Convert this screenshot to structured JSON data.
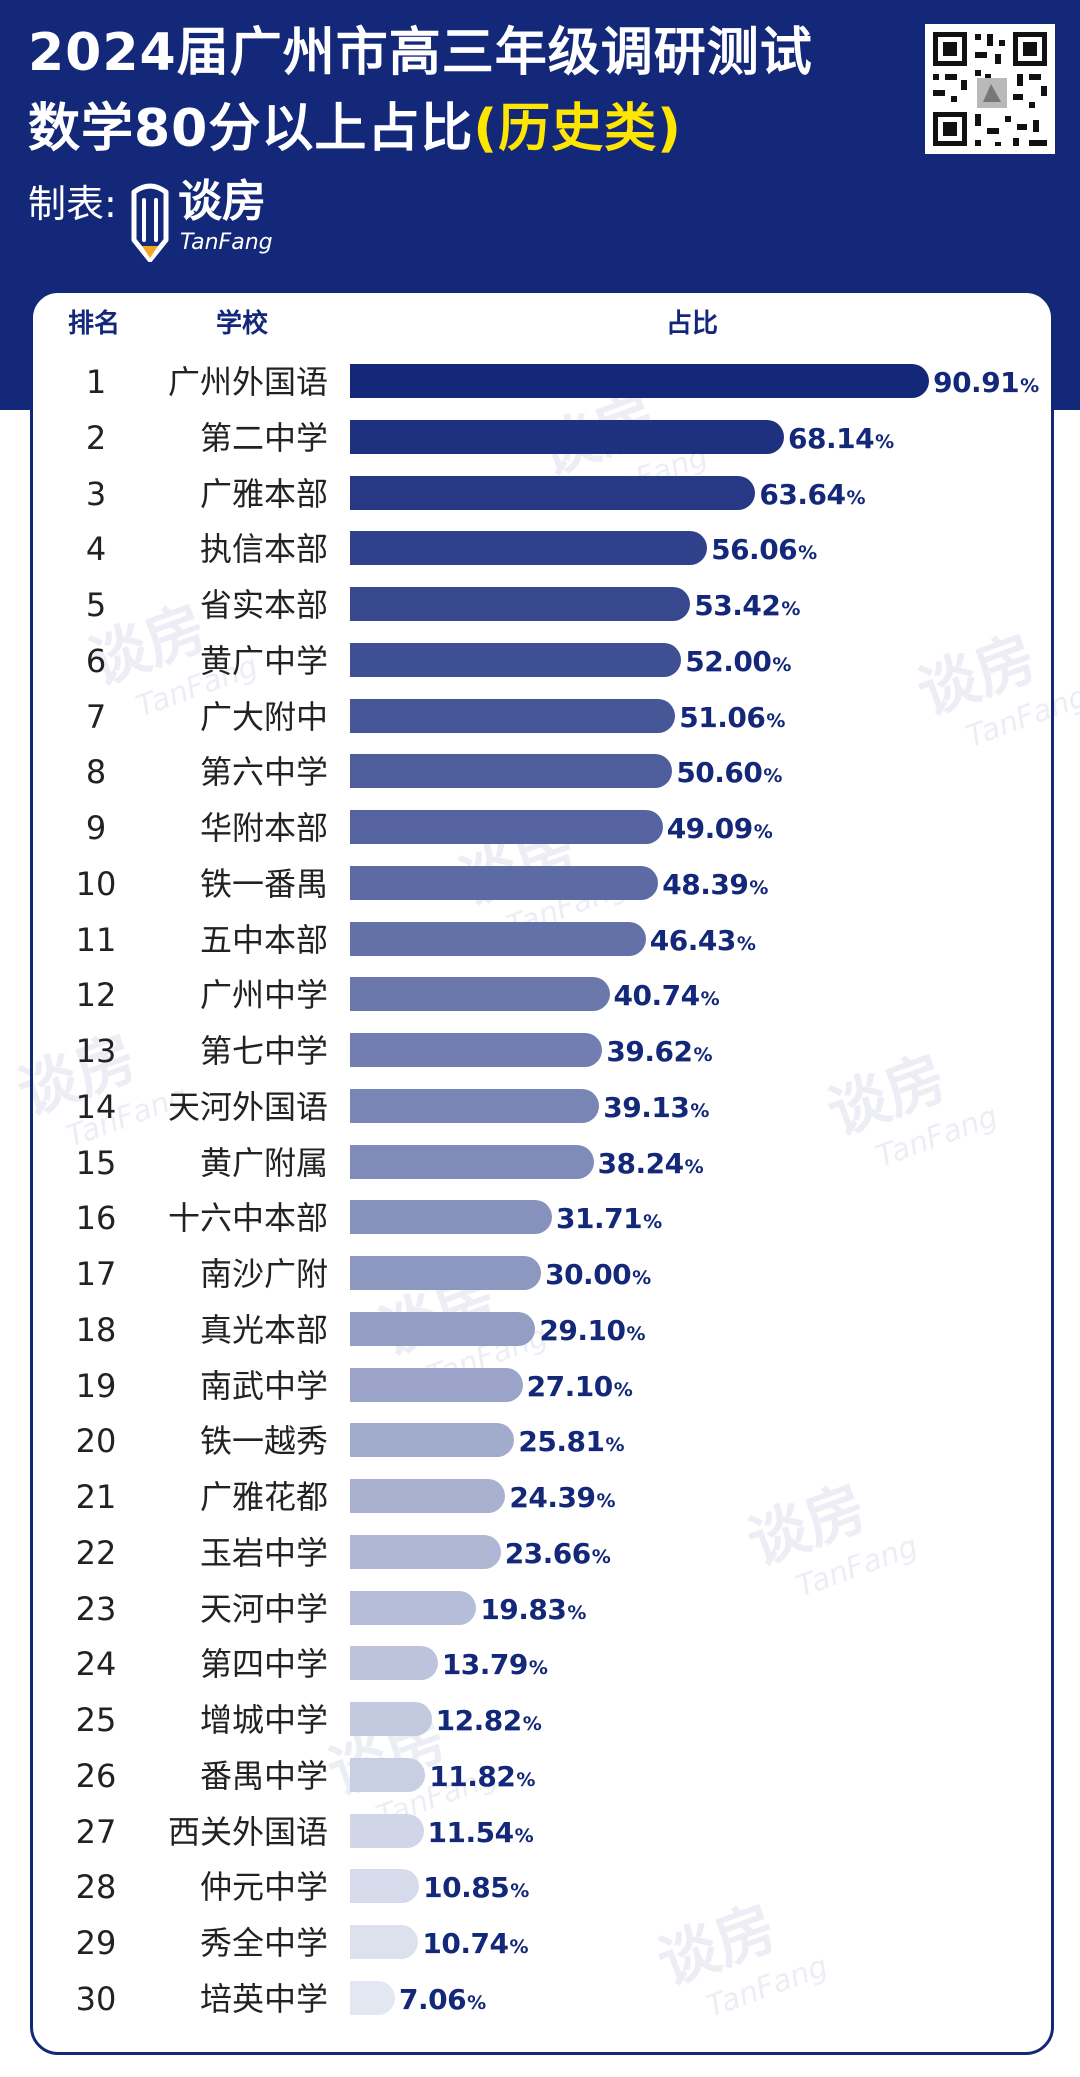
{
  "header": {
    "title_line1": "2024届广州市高三年级调研测试",
    "title_line2_main": "数学80分以上占比",
    "title_line2_highlight": "(历史类)",
    "maker_label": "制表:",
    "logo_text": "谈房",
    "logo_sub": "TanFang"
  },
  "columns": {
    "rank": "排名",
    "school": "学校",
    "share": "占比"
  },
  "watermark": {
    "text": "谈房",
    "sub": "TanFang"
  },
  "colors": {
    "header_bg": "#14287a",
    "highlight": "#ffe600",
    "bar_dark": "#14287a",
    "bar_light": "#e3e7f2"
  },
  "chart_data": {
    "type": "bar",
    "orientation": "horizontal",
    "unit": "%",
    "xlim": [
      0,
      100
    ],
    "ranks": [
      "1",
      "2",
      "3",
      "4",
      "5",
      "6",
      "7",
      "8",
      "9",
      "10",
      "11",
      "12",
      "13",
      "14",
      "15",
      "16",
      "17",
      "18",
      "19",
      "20",
      "21",
      "22",
      "23",
      "24",
      "25",
      "26",
      "27",
      "28",
      "29",
      "30"
    ],
    "categories": [
      "广州外国语",
      "第二中学",
      "广雅本部",
      "执信本部",
      "省实本部",
      "黄广中学",
      "广大附中",
      "第六中学",
      "华附本部",
      "铁一番禺",
      "五中本部",
      "广州中学",
      "第七中学",
      "天河外国语",
      "黄广附属",
      "十六中本部",
      "南沙广附",
      "真光本部",
      "南武中学",
      "铁一越秀",
      "广雅花都",
      "玉岩中学",
      "天河中学",
      "第四中学",
      "增城中学",
      "番禺中学",
      "西关外国语",
      "仲元中学",
      "秀全中学",
      "培英中学"
    ],
    "values": [
      90.91,
      68.14,
      63.64,
      56.06,
      53.42,
      52.0,
      51.06,
      50.6,
      49.09,
      48.39,
      46.43,
      40.74,
      39.62,
      39.13,
      38.24,
      31.71,
      30.0,
      29.1,
      27.1,
      25.81,
      24.39,
      23.66,
      19.83,
      13.79,
      12.82,
      11.82,
      11.54,
      10.85,
      10.74,
      7.06
    ],
    "labels": [
      "90.91",
      "68.14",
      "63.64",
      "56.06",
      "53.42",
      "52.00",
      "51.06",
      "50.60",
      "49.09",
      "48.39",
      "46.43",
      "40.74",
      "39.62",
      "39.13",
      "38.24",
      "31.71",
      "30.00",
      "29.10",
      "27.10",
      "25.81",
      "24.39",
      "23.66",
      "19.83",
      "13.79",
      "12.82",
      "11.82",
      "11.54",
      "10.85",
      "10.74",
      "7.06"
    ]
  }
}
